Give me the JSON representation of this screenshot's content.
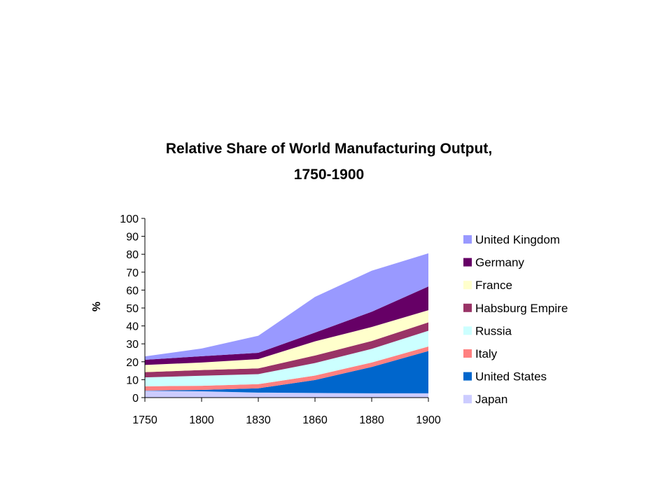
{
  "chart_data": {
    "type": "area",
    "title": "Relative Share of World Manufacturing Output,",
    "subtitle": "1750-1900",
    "xlabel": "",
    "ylabel": "%",
    "ylim": [
      0,
      100
    ],
    "yticks": [
      0,
      10,
      20,
      30,
      40,
      50,
      60,
      70,
      80,
      90,
      100
    ],
    "categories": [
      "1750",
      "1800",
      "1830",
      "1860",
      "1880",
      "1900"
    ],
    "grid": false,
    "legend": "right",
    "stacked": true,
    "series": [
      {
        "name": "Japan",
        "color": "#ccccff",
        "values": [
          3.8,
          3.5,
          2.8,
          2.6,
          2.4,
          2.4
        ]
      },
      {
        "name": "United States",
        "color": "#0066cc",
        "values": [
          0.1,
          0.8,
          2.4,
          7.2,
          14.7,
          23.6
        ]
      },
      {
        "name": "Italy",
        "color": "#ff8080",
        "values": [
          2.4,
          2.3,
          2.3,
          2.5,
          2.5,
          2.5
        ]
      },
      {
        "name": "Russia",
        "color": "#ccffff",
        "values": [
          5.0,
          5.6,
          5.6,
          7.0,
          7.6,
          8.8
        ]
      },
      {
        "name": "Habsburg Empire",
        "color": "#993366",
        "values": [
          2.9,
          3.2,
          3.2,
          4.2,
          4.4,
          4.7
        ]
      },
      {
        "name": "France",
        "color": "#ffffcc",
        "values": [
          4.0,
          4.2,
          5.2,
          7.9,
          7.8,
          6.8
        ]
      },
      {
        "name": "Germany",
        "color": "#660066",
        "values": [
          2.9,
          3.5,
          3.5,
          4.9,
          8.5,
          13.2
        ]
      },
      {
        "name": "United Kingdom",
        "color": "#9999ff",
        "values": [
          1.9,
          4.3,
          9.5,
          19.9,
          22.9,
          18.5
        ]
      }
    ]
  }
}
